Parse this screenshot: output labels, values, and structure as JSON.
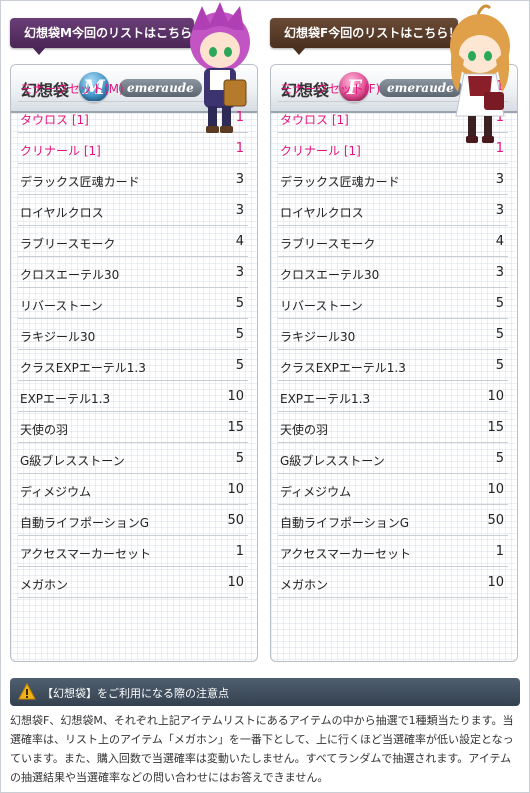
{
  "panels": {
    "m": {
      "banner": "幻想袋M今回のリストはこちら！",
      "label": "幻想袋",
      "letter": "M",
      "brand": "emeraude",
      "items": [
        {
          "name": "モナークセット(M)",
          "qty": "1"
        },
        {
          "name": "タウロス [1]",
          "qty": "1"
        },
        {
          "name": "クリナール [1]",
          "qty": "1"
        },
        {
          "name": "デラックス匠魂カード",
          "qty": "3"
        },
        {
          "name": "ロイヤルクロス",
          "qty": "3"
        },
        {
          "name": "ラブリースモーク",
          "qty": "4"
        },
        {
          "name": "クロスエーテル30",
          "qty": "3"
        },
        {
          "name": "リバーストーン",
          "qty": "5"
        },
        {
          "name": "ラキジール30",
          "qty": "5"
        },
        {
          "name": "クラスEXPエーテル1.3",
          "qty": "5"
        },
        {
          "name": "EXPエーテル1.3",
          "qty": "10"
        },
        {
          "name": "天使の羽",
          "qty": "15"
        },
        {
          "name": "G級ブレスストーン",
          "qty": "5"
        },
        {
          "name": "ディメジウム",
          "qty": "10"
        },
        {
          "name": "自動ライフポーションG",
          "qty": "50"
        },
        {
          "name": "アクセスマーカーセット",
          "qty": "1"
        },
        {
          "name": "メガホン",
          "qty": "10"
        }
      ]
    },
    "f": {
      "banner": "幻想袋F今回のリストはこちら！",
      "label": "幻想袋",
      "letter": "F",
      "brand": "emeraude",
      "items": [
        {
          "name": "モナークセット(F)",
          "qty": "1"
        },
        {
          "name": "タウロス [1]",
          "qty": "1"
        },
        {
          "name": "クリナール [1]",
          "qty": "1"
        },
        {
          "name": "デラックス匠魂カード",
          "qty": "3"
        },
        {
          "name": "ロイヤルクロス",
          "qty": "3"
        },
        {
          "name": "ラブリースモーク",
          "qty": "4"
        },
        {
          "name": "クロスエーテル30",
          "qty": "3"
        },
        {
          "name": "リバーストーン",
          "qty": "5"
        },
        {
          "name": "ラキジール30",
          "qty": "5"
        },
        {
          "name": "クラスEXPエーテル1.3",
          "qty": "5"
        },
        {
          "name": "EXPエーテル1.3",
          "qty": "10"
        },
        {
          "name": "天使の羽",
          "qty": "15"
        },
        {
          "name": "G級ブレスストーン",
          "qty": "5"
        },
        {
          "name": "ディメジウム",
          "qty": "10"
        },
        {
          "name": "自動ライフポーションG",
          "qty": "50"
        },
        {
          "name": "アクセスマーカーセット",
          "qty": "1"
        },
        {
          "name": "メガホン",
          "qty": "10"
        }
      ]
    }
  },
  "notice": {
    "icon": "warning-icon",
    "title": "【幻想袋】をご利用になる際の注意点",
    "text": "幻想袋F、幻想袋M、それぞれ上記アイテムリストにあるアイテムの中から抽選で1種類当たります。当選確率は、リスト上のアイテム「メガホン」を一番下として、上に行くほど当選確率が低い設定となっています。また、購入回数で当選確率は変動いたしません。すべてランダムで抽選されます。アイテムの抽選結果や当選確率などの問い合わせにはお答えできません。"
  },
  "colors": {
    "highlight_item": "#e6147d",
    "banner_m": "#4a2656",
    "banner_f": "#4a3020",
    "notice_bar": "#3d4a58"
  }
}
